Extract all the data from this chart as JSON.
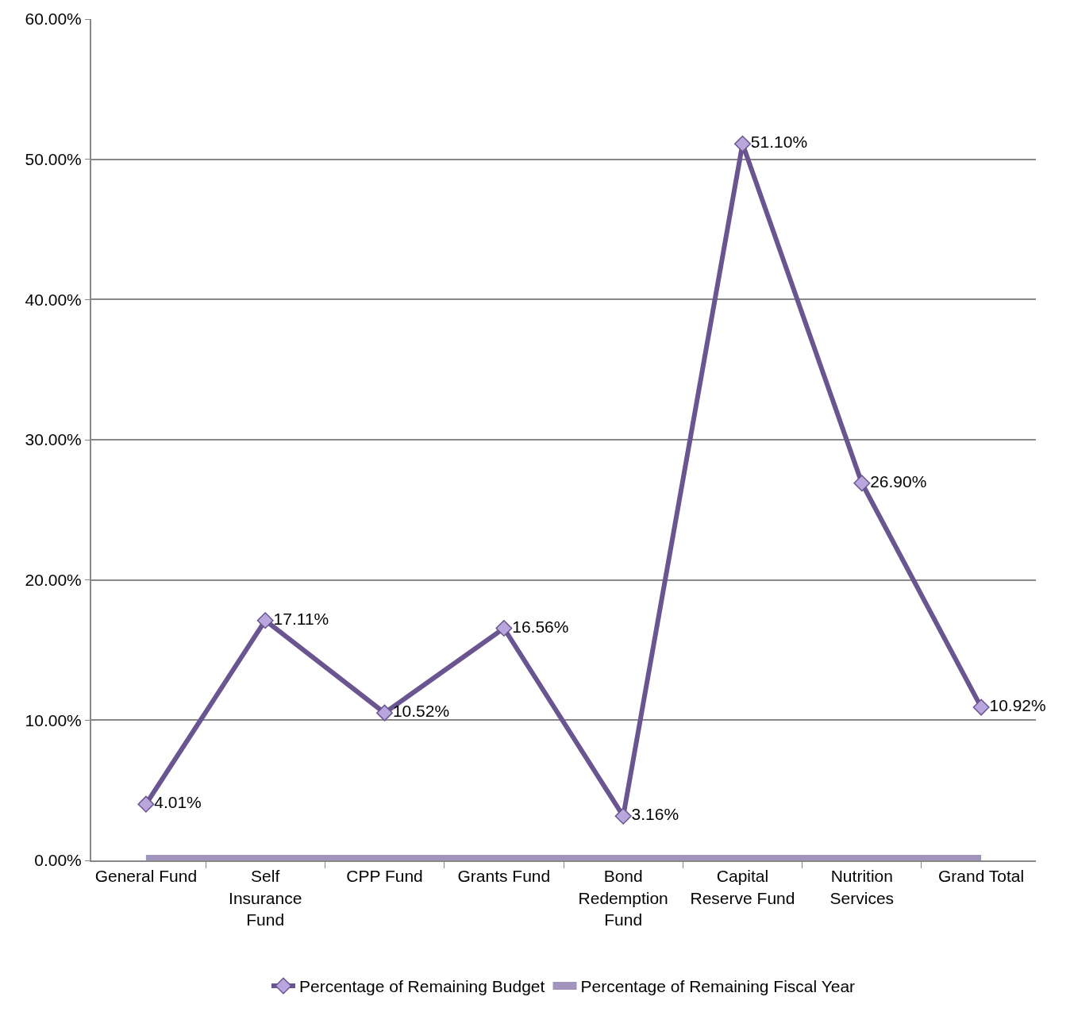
{
  "chart_data": {
    "type": "line",
    "categories": [
      "General Fund",
      "Self Insurance Fund",
      "CPP Fund",
      "Grants Fund",
      "Bond Redemption Fund",
      "Capital Reserve Fund",
      "Nutrition Services",
      "Grand Total"
    ],
    "series": [
      {
        "name": "Percentage of Remaining Budget",
        "color": "#6a5590",
        "marker": "diamond",
        "values": [
          4.01,
          17.11,
          10.52,
          16.56,
          3.16,
          51.1,
          26.9,
          10.92
        ],
        "value_labels": [
          "4.01%",
          "17.11%",
          "10.52%",
          "16.56%",
          "3.16%",
          "51.10%",
          "26.90%",
          "10.92%"
        ]
      },
      {
        "name": "Percentage of Remaining Fiscal Year",
        "color": "#a295bd",
        "marker": "none",
        "values": [
          0,
          0,
          0,
          0,
          0,
          0,
          0,
          0
        ]
      }
    ],
    "ylim": [
      0,
      60
    ],
    "yticks": [
      {
        "value": 0,
        "label": "0.00%"
      },
      {
        "value": 10,
        "label": "10.00%"
      },
      {
        "value": 20,
        "label": "20.00%"
      },
      {
        "value": 30,
        "label": "30.00%"
      },
      {
        "value": 40,
        "label": "40.00%"
      },
      {
        "value": 50,
        "label": "50.00%"
      },
      {
        "value": 60,
        "label": "60.00%"
      }
    ],
    "grid": "y",
    "legend": "bottom"
  }
}
